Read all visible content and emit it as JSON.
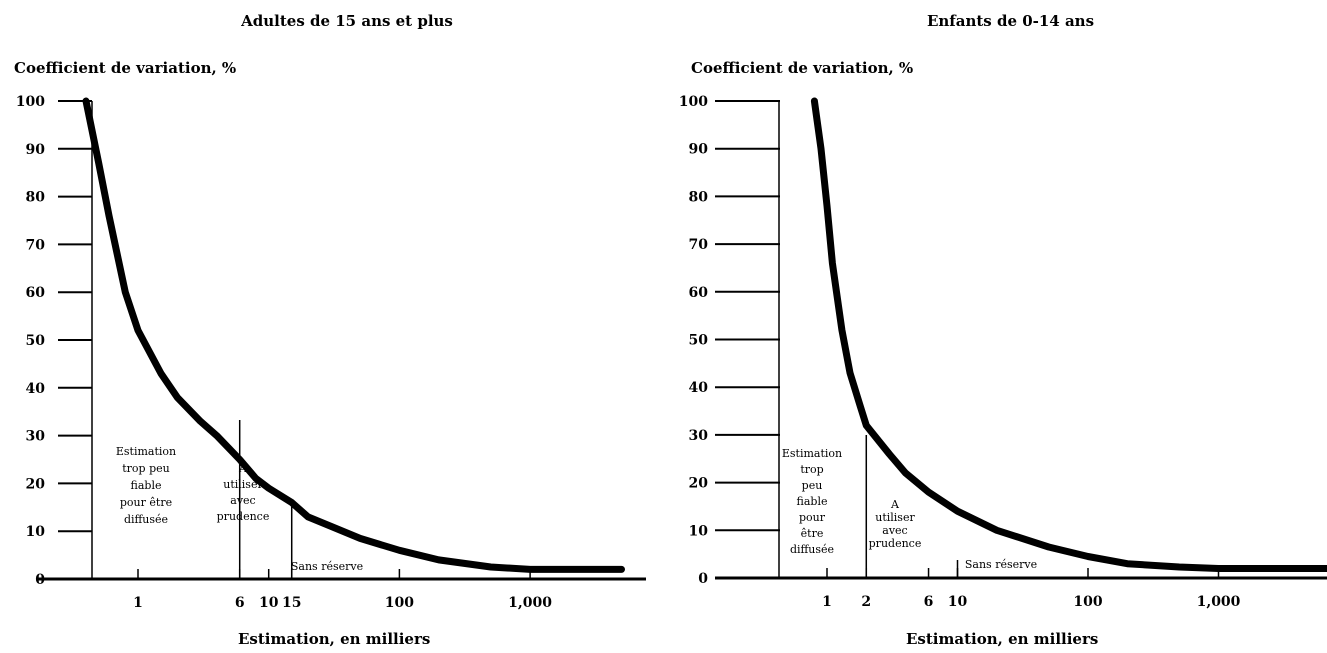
{
  "chart_data": [
    {
      "type": "line",
      "title": "Adultes de 15 ans et plus",
      "ylabel": "Coefficient de variation, %",
      "xlabel": "Estimation, en milliers",
      "y_ticks": [
        "0",
        "10",
        "20",
        "30",
        "40",
        "50",
        "60",
        "70",
        "80",
        "90",
        "100"
      ],
      "ylim": [
        0,
        100
      ],
      "x_scale": "log",
      "x_ticks": [
        "1",
        "6",
        "10",
        "15",
        "100",
        "1,000"
      ],
      "x_tick_values": [
        1,
        6,
        10,
        15,
        100,
        1000
      ],
      "zones": [
        {
          "label": "Estimation trop peu fiable pour être diffusée",
          "x_range": [
            0.3,
            6
          ],
          "lines": [
            "Estimation",
            "trop peu",
            "fiable",
            "pour être",
            "diffusée"
          ]
        },
        {
          "label": "A utiliser avec prudence",
          "x_range": [
            6,
            15
          ],
          "lines": [
            "A",
            "utiliser",
            "avec",
            "prudence"
          ]
        },
        {
          "label": "Sans réserve",
          "x_range": [
            15,
            5000
          ],
          "lines": [
            "Sans réserve"
          ]
        }
      ],
      "series": [
        {
          "x": [
            0.4,
            0.5,
            0.6,
            0.8,
            1,
            1.5,
            2,
            3,
            4,
            6,
            8,
            10,
            15,
            20,
            30,
            50,
            100,
            200,
            500,
            1000,
            2000,
            5000
          ],
          "y": [
            100,
            87,
            76,
            60,
            52,
            43,
            38,
            33,
            30,
            25,
            21,
            19,
            16,
            13,
            11,
            8.5,
            6,
            4,
            2.5,
            2,
            2,
            2
          ]
        }
      ]
    },
    {
      "type": "line",
      "title": "Enfants de 0-14 ans",
      "ylabel": "Coefficient de variation, %",
      "xlabel": "Estimation, en milliers",
      "y_ticks": [
        "0",
        "10",
        "20",
        "30",
        "40",
        "50",
        "60",
        "70",
        "80",
        "90",
        "100"
      ],
      "ylim": [
        0,
        100
      ],
      "x_scale": "log",
      "x_ticks": [
        "1",
        "2",
        "6",
        "10",
        "100",
        "1,000"
      ],
      "x_tick_values": [
        1,
        2,
        6,
        10,
        100,
        1000
      ],
      "zones": [
        {
          "label": "Estimation trop peu fiable pour être diffusée",
          "x_range": [
            0.3,
            2
          ],
          "lines": [
            "Estimation",
            "trop",
            "peu",
            "fiable",
            "pour",
            "être",
            "diffusée"
          ]
        },
        {
          "label": "A utiliser avec prudence",
          "x_range": [
            2,
            10
          ],
          "lines": [
            "A",
            "utiliser",
            "avec",
            "prudence"
          ]
        },
        {
          "label": "Sans réserve",
          "x_range": [
            10,
            8000
          ],
          "lines": [
            "Sans réserve"
          ]
        }
      ],
      "series": [
        {
          "x": [
            0.8,
            0.9,
            1,
            1.1,
            1.3,
            1.5,
            1.8,
            2,
            3,
            4,
            6,
            10,
            20,
            50,
            100,
            200,
            500,
            1000,
            3000,
            8000
          ],
          "y": [
            100,
            90,
            78,
            66,
            52,
            43,
            36,
            32,
            26,
            22,
            18,
            14,
            10,
            6.5,
            4.5,
            3,
            2.3,
            2,
            2,
            2
          ]
        }
      ]
    }
  ]
}
